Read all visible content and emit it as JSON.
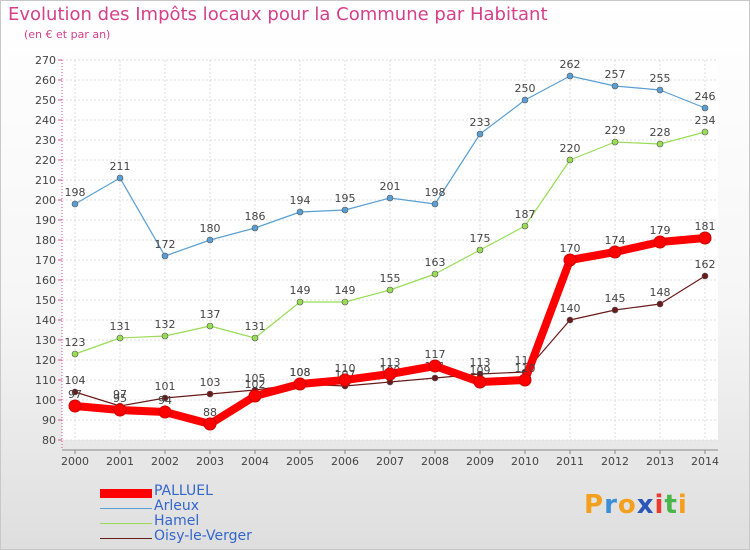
{
  "header": {
    "title": "Evolution des Impôts locaux pour la Commune par Habitant",
    "subtitle": "(en € et par an)"
  },
  "brand": {
    "logo_text": "Proxiti",
    "letter_colors": [
      "#f2a01e",
      "#3a8fd6",
      "#f2a01e",
      "#2b57b8",
      "#e83a2f",
      "#49b649",
      "#f2a01e"
    ]
  },
  "chart_data": {
    "type": "line",
    "x": [
      2000,
      2001,
      2002,
      2003,
      2004,
      2005,
      2006,
      2007,
      2008,
      2009,
      2010,
      2011,
      2012,
      2013,
      2014
    ],
    "ylim": [
      80,
      270
    ],
    "yticks": [
      80,
      90,
      100,
      110,
      120,
      130,
      140,
      150,
      160,
      170,
      180,
      190,
      200,
      210,
      220,
      230,
      240,
      250,
      260,
      270
    ],
    "grid": true,
    "legend_position": "bottom-left",
    "series": [
      {
        "name": "Arleux",
        "color": "#5a9fd4",
        "values": [
          198,
          211,
          172,
          180,
          186,
          194,
          195,
          201,
          198,
          233,
          250,
          262,
          257,
          255,
          246
        ]
      },
      {
        "name": "Hamel",
        "color": "#99dd55",
        "values": [
          123,
          131,
          132,
          137,
          131,
          149,
          149,
          155,
          163,
          175,
          187,
          220,
          229,
          228,
          234
        ]
      },
      {
        "name": "Oisy-le-Verger",
        "color": "#6b1a1a",
        "values": [
          104,
          97,
          101,
          103,
          105,
          108,
          107,
          109,
          111,
          113,
          114,
          140,
          145,
          148,
          162
        ]
      },
      {
        "name": "PALLUEL",
        "color": "#ff0000",
        "values": [
          97,
          95,
          94,
          88,
          102,
          108,
          110,
          113,
          117,
          109,
          110,
          170,
          174,
          179,
          181
        ]
      }
    ],
    "legend_order": [
      "PALLUEL",
      "Arleux",
      "Hamel",
      "Oisy-le-Verger"
    ]
  }
}
